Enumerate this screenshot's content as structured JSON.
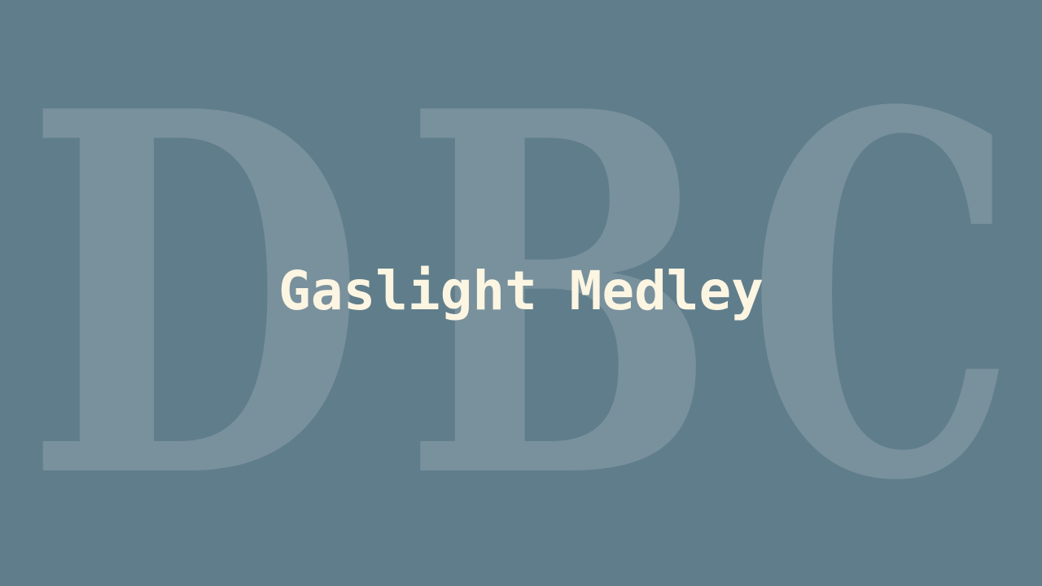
{
  "title": "Gaslight Medley",
  "watermark": {
    "letters": [
      "D",
      "B",
      "C"
    ]
  },
  "colors": {
    "background": "#607d8b",
    "title": "#fbf5e2",
    "watermark": "#ffffff"
  }
}
